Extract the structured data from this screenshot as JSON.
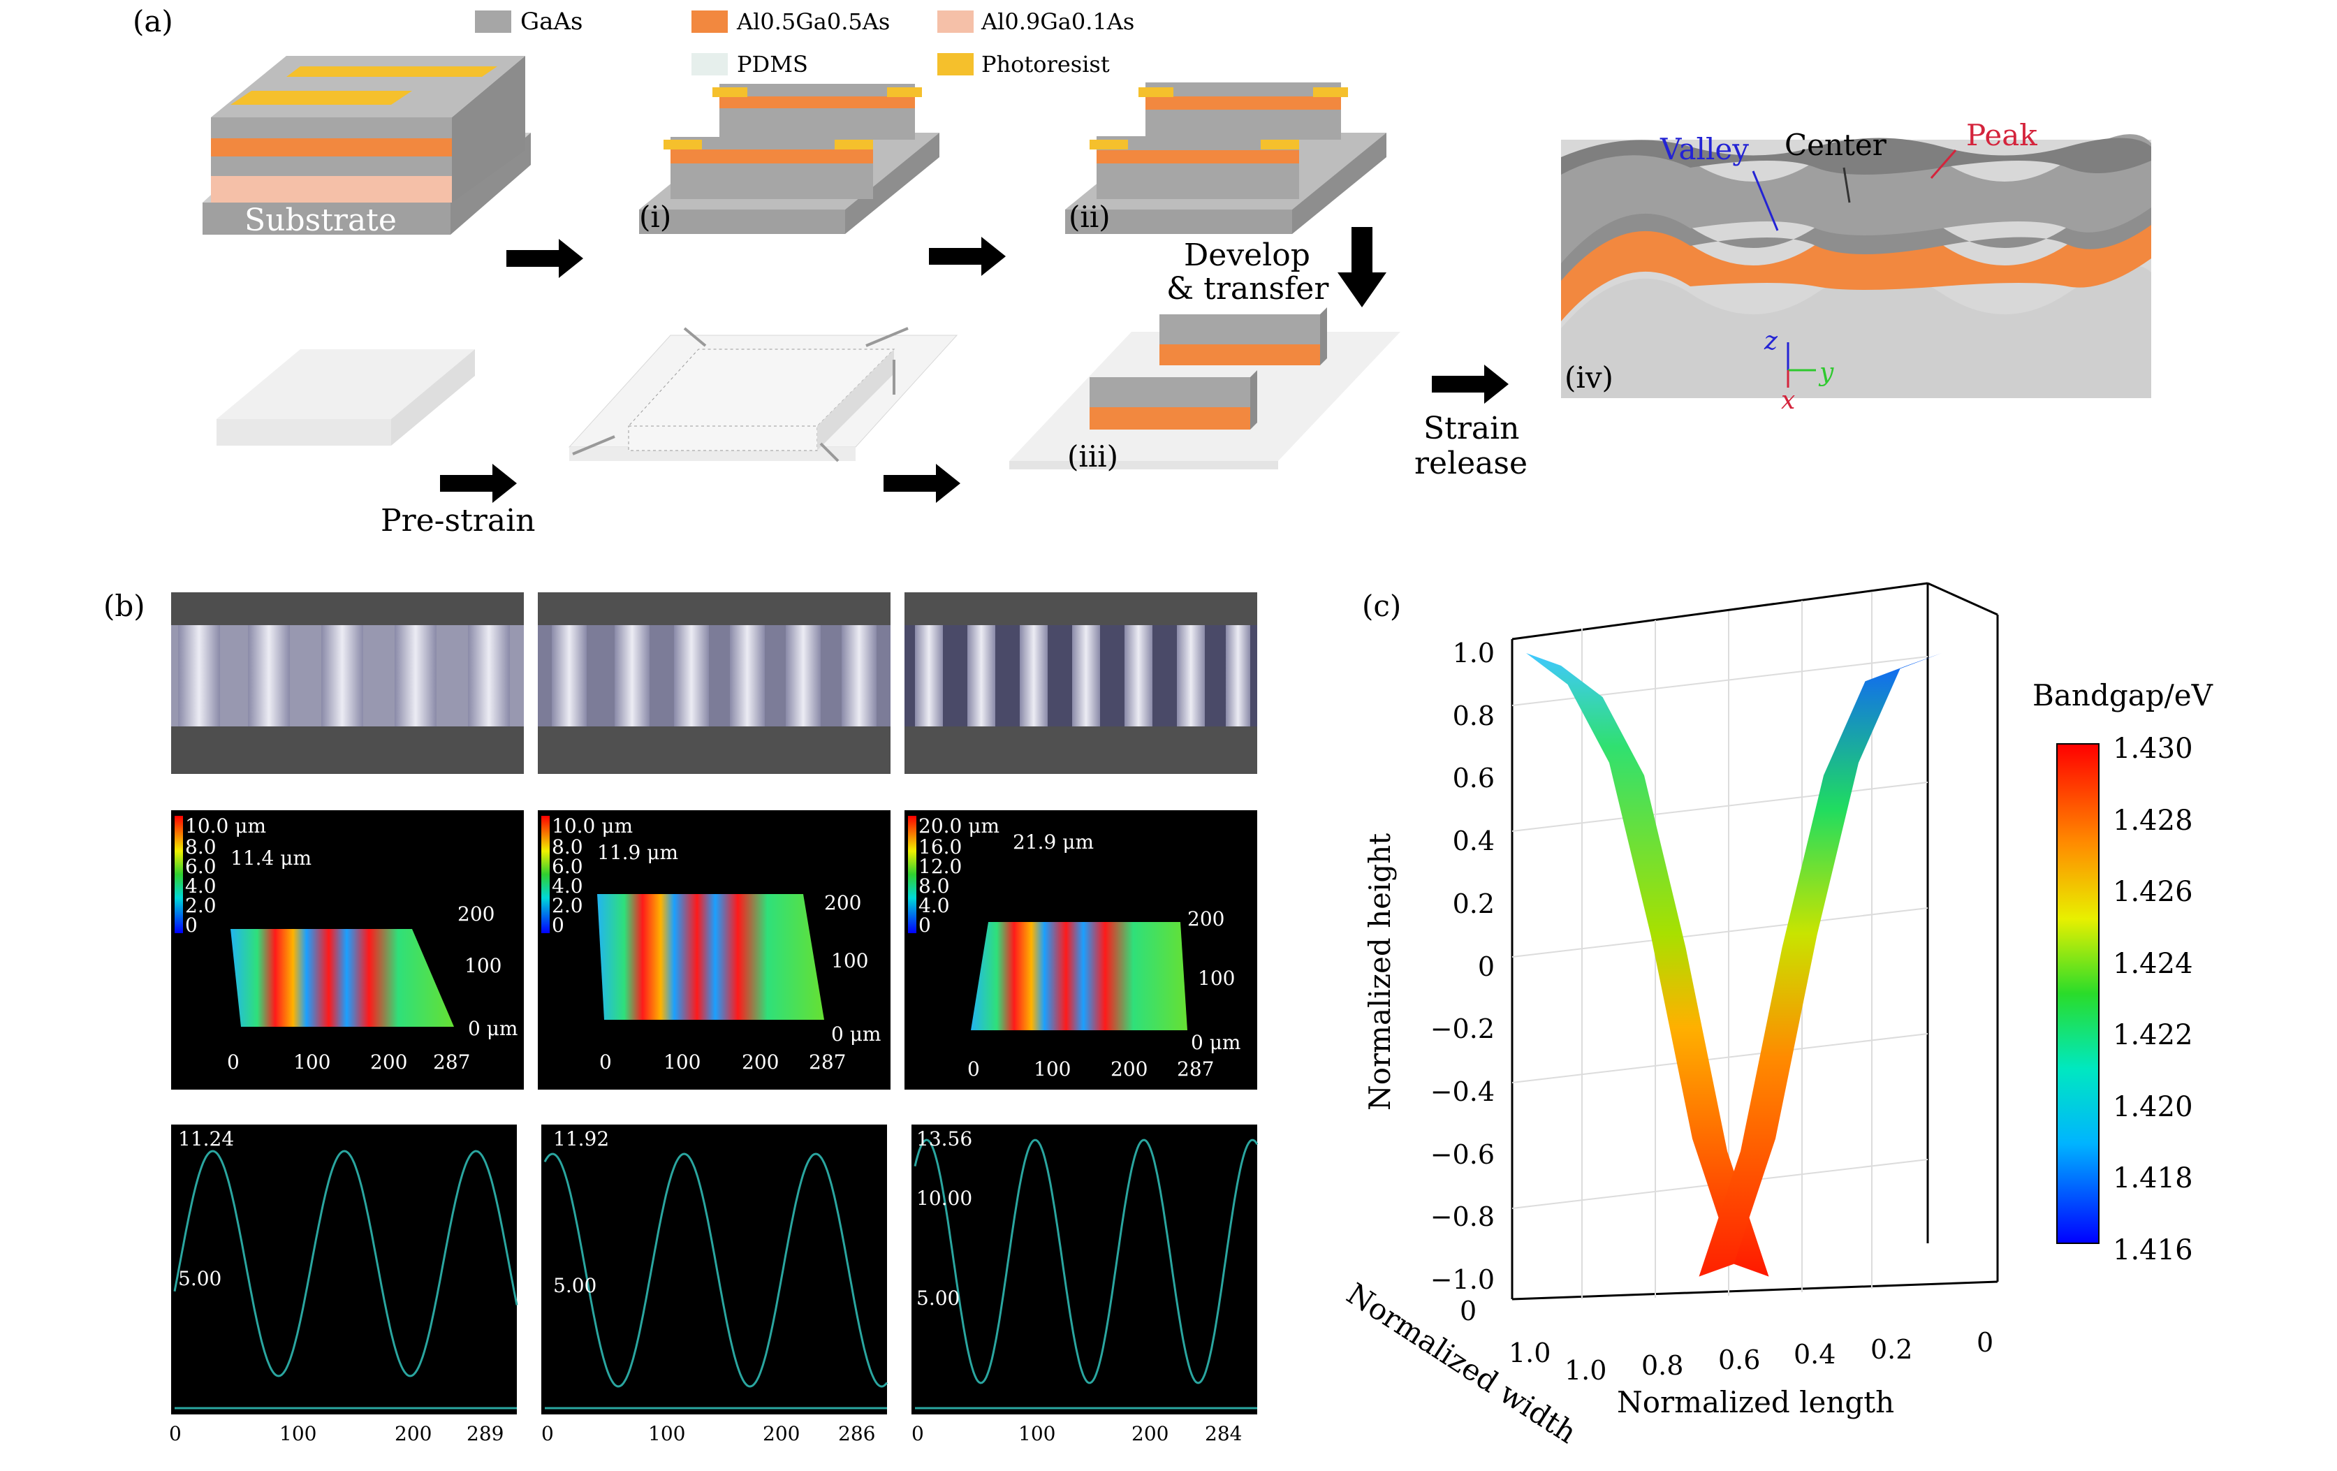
{
  "colors": {
    "gaas": "#a6a6a6",
    "al05": "#f2883f",
    "al09": "#f5c0a8",
    "pdms": "#e6efec",
    "photoresist": "#f5c02c",
    "valley": "#2323d4",
    "peak": "#d4243c",
    "axis_z": "#2323d4",
    "axis_y": "#2ec92e",
    "axis_x": "#d4243c"
  },
  "panel_a": {
    "label": "(a)",
    "legend": [
      {
        "label": "GaAs",
        "color": "#a6a6a6"
      },
      {
        "label": "Al0.5Ga0.5As",
        "color": "#f2883f"
      },
      {
        "label": "Al0.9Ga0.1As",
        "color": "#f5c0a8"
      },
      {
        "label": "PDMS",
        "color": "#e6efec"
      },
      {
        "label": "Photoresist",
        "color": "#f5c02c"
      }
    ],
    "substrate_label": "Substrate",
    "step_i": "(i)",
    "step_ii": "(ii)",
    "step_iii": "(iii)",
    "step_iv": "(iv)",
    "develop_line1": "Develop",
    "develop_line2": "& transfer",
    "prestrain": "Pre-strain",
    "strain_line1": "Strain",
    "strain_line2": "release",
    "valley": "Valley",
    "center": "Center",
    "peak": "Peak",
    "axis_z": "z",
    "axis_y": "y",
    "axis_x": "x"
  },
  "panel_b": {
    "label": "(b)",
    "profiles": [
      {
        "colorbar": [
          "10.0 μm",
          "8.0",
          "6.0",
          "4.0",
          "2.0",
          "0"
        ],
        "height_label": "11.4 μm",
        "y_ticks": [
          "200",
          "100",
          "0 μm"
        ],
        "x_ticks": [
          "0",
          "100",
          "200",
          "287"
        ]
      },
      {
        "colorbar": [
          "10.0 μm",
          "8.0",
          "6.0",
          "4.0",
          "2.0",
          "0"
        ],
        "height_label": "11.9 μm",
        "y_ticks": [
          "200",
          "100",
          "0 μm"
        ],
        "x_ticks": [
          "0",
          "100",
          "200",
          "287"
        ]
      },
      {
        "colorbar": [
          "20.0 μm",
          "16.0",
          "12.0",
          "8.0",
          "4.0",
          "0"
        ],
        "height_label": "21.9 μm",
        "y_ticks": [
          "200",
          "100",
          "0 μm"
        ],
        "x_ticks": [
          "0",
          "100",
          "200",
          "287"
        ]
      }
    ],
    "lineplots": [
      {
        "ticks": [
          "11.24",
          "5.00"
        ],
        "x_ticks": [
          "0",
          "100",
          "200",
          "289"
        ],
        "amplitude_um": 11.24
      },
      {
        "ticks": [
          "11.92",
          "5.00"
        ],
        "x_ticks": [
          "0",
          "100",
          "200",
          "286"
        ],
        "amplitude_um": 11.92
      },
      {
        "ticks": [
          "13.56",
          "10.00",
          "5.00"
        ],
        "x_ticks": [
          "0",
          "100",
          "200",
          "284"
        ],
        "amplitude_um": 13.56
      }
    ]
  },
  "panel_c": {
    "label": "(c)",
    "ylabel": "Normalized height",
    "xlabel": "Normalized length",
    "wlabel": "Normalized width",
    "y_ticks": [
      "1.0",
      "0.8",
      "0.6",
      "0.4",
      "0.2",
      "0",
      "−0.2",
      "−0.4",
      "−0.6",
      "−0.8",
      "−1.0"
    ],
    "y_bottom_tick": "0",
    "x_ticks": [
      "1.0",
      "0.8",
      "0.6",
      "0.4",
      "0.2",
      "0"
    ],
    "w_tick": "1.0",
    "colorbar_title": "Bandgap/eV",
    "colorbar_ticks": [
      "1.430",
      "1.428",
      "1.426",
      "1.424",
      "1.422",
      "1.420",
      "1.418",
      "1.416"
    ]
  },
  "chart_data": {
    "type": "line",
    "title": "",
    "xlabel": "Normalized length",
    "ylabel": "Normalized height",
    "zlabel": "Normalized width",
    "x": [
      1.0,
      0.9,
      0.8,
      0.7,
      0.6,
      0.5,
      0.4,
      0.3,
      0.2,
      0.1,
      0.0
    ],
    "series": [
      {
        "name": "Normalized height",
        "values": [
          1.0,
          0.9,
          0.65,
          0.1,
          -0.55,
          -0.95,
          -0.55,
          0.1,
          0.65,
          0.95,
          1.0
        ]
      },
      {
        "name": "Bandgap/eV",
        "values": [
          1.419,
          1.421,
          1.424,
          1.427,
          1.429,
          1.43,
          1.429,
          1.427,
          1.424,
          1.42,
          1.417
        ]
      }
    ],
    "ylim": [
      -1.0,
      1.0
    ],
    "colorbar_range": [
      1.416,
      1.43
    ]
  }
}
